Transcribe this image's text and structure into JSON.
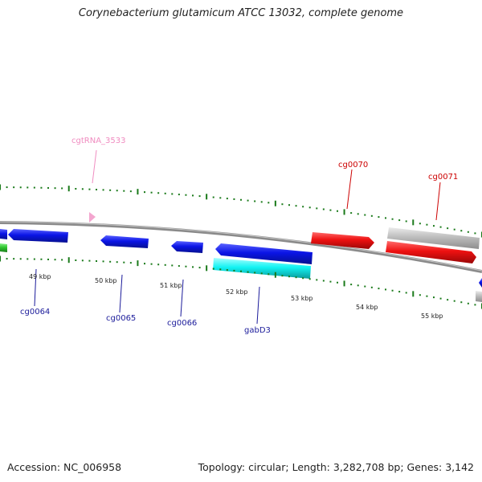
{
  "title": "Corynebacterium glutamicum ATCC 13032, complete genome",
  "footer": {
    "accession": "Accession: NC_006958",
    "topology": "Topology: circular; Length: 3,282,708 bp; Genes: 3,142"
  },
  "colors": {
    "cds_blue": "#0a14e6",
    "trna_pink": "#f3a6cf",
    "rrna_cyan": "#12f3f3",
    "pseudo_gray": "#bdbdbd",
    "highlight_red": "#ee1111",
    "green": "#2fc72f",
    "tick_green": "#1a7a1a",
    "backbone_gray": "#8a8a8a",
    "label_blue": "#1a1a9a",
    "label_red": "#cc0000",
    "label_pink": "#f08cc0"
  },
  "kbp_labels": [
    "49 kbp",
    "50 kbp",
    "51 kbp",
    "52 kbp",
    "53 kbp",
    "54 kbp",
    "55 kbp"
  ],
  "gene_labels": {
    "trna": "cgtRNA_3533",
    "cg0070": "cg0070",
    "cg0071": "cg0071",
    "cg0064": "cg0064",
    "cg0065": "cg0065",
    "cg0066": "cg0066",
    "gabD3": "gabD3"
  }
}
